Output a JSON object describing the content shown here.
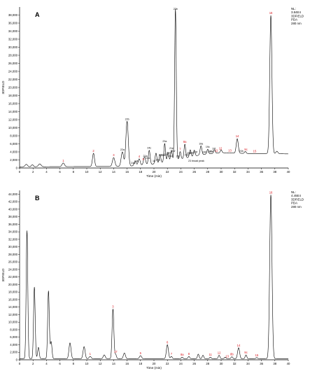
{
  "chart_data": [
    {
      "type": "line",
      "panel": "A",
      "info_lines": [
        "NL:",
        "3.84E4",
        "3DFIELD",
        "PDA",
        "280 nm"
      ],
      "xlabel": "Time (min)",
      "ylabel": "3DFIELD",
      "xlim": [
        0,
        40
      ],
      "ylim": [
        0,
        40000
      ],
      "x_ticks": [
        0,
        2,
        4,
        6,
        8,
        10,
        12,
        14,
        16,
        18,
        20,
        22,
        24,
        26,
        28,
        30,
        32,
        34,
        36,
        38,
        40
      ],
      "y_ticks": [
        0,
        2000,
        4000,
        6000,
        8000,
        10000,
        12000,
        14000,
        16000,
        18000,
        20000,
        22000,
        24000,
        26000,
        28000,
        30000,
        32000,
        34000,
        36000,
        38000
      ],
      "x_tick_labels": [
        "0",
        "2",
        "4",
        "6",
        "8",
        "10",
        "12",
        "14",
        "16",
        "18",
        "20",
        "22",
        "24",
        "26",
        "28",
        "30",
        "32",
        "34",
        "36",
        "38",
        "40"
      ],
      "y_tick_labels": [
        "0",
        "2,000",
        "4,000",
        "6,000",
        "8,000",
        "10,000",
        "12,000",
        "14,000",
        "16,000",
        "18,000",
        "20,000",
        "22,000",
        "24,000",
        "26,000",
        "28,000",
        "30,000",
        "32,000",
        "34,000",
        "36,000",
        "38,000"
      ],
      "baseline": [
        [
          0,
          300
        ],
        [
          16,
          400
        ],
        [
          20,
          1000
        ],
        [
          24,
          2200
        ],
        [
          27,
          3300
        ],
        [
          30,
          3800
        ],
        [
          34,
          3600
        ],
        [
          37,
          3600
        ],
        [
          40,
          3500
        ]
      ],
      "peaks": [
        {
          "rt": 1.0,
          "h": 600,
          "w": 0.18
        },
        {
          "rt": 1.9,
          "h": 500,
          "w": 0.15
        },
        {
          "rt": 3.0,
          "h": 700,
          "w": 0.2
        },
        {
          "rt": 6.5,
          "h": 900,
          "w": 0.18
        },
        {
          "rt": 11.0,
          "h": 3300,
          "w": 0.15
        },
        {
          "rt": 14.0,
          "h": 2200,
          "w": 0.18
        },
        {
          "rt": 15.3,
          "h": 3600,
          "w": 0.18
        },
        {
          "rt": 16.0,
          "h": 11200,
          "w": 0.18
        },
        {
          "rt": 17.2,
          "h": 1100,
          "w": 0.15
        },
        {
          "rt": 17.8,
          "h": 1600,
          "w": 0.15
        },
        {
          "rt": 18.6,
          "h": 2000,
          "w": 0.15
        },
        {
          "rt": 19.3,
          "h": 3500,
          "w": 0.13
        },
        {
          "rt": 20.3,
          "h": 2600,
          "w": 0.13
        },
        {
          "rt": 20.9,
          "h": 2000,
          "w": 0.12
        },
        {
          "rt": 21.6,
          "h": 4600,
          "w": 0.12
        },
        {
          "rt": 22.1,
          "h": 2200,
          "w": 0.12
        },
        {
          "rt": 22.6,
          "h": 2600,
          "w": 0.12
        },
        {
          "rt": 23.2,
          "h": 37500,
          "w": 0.12
        },
        {
          "rt": 23.9,
          "h": 1900,
          "w": 0.12
        },
        {
          "rt": 24.6,
          "h": 3500,
          "w": 0.12
        },
        {
          "rt": 25.4,
          "h": 1800,
          "w": 0.12
        },
        {
          "rt": 26.0,
          "h": 1500,
          "w": 0.12
        },
        {
          "rt": 27.0,
          "h": 2200,
          "w": 0.13
        },
        {
          "rt": 28.0,
          "h": 1200,
          "w": 0.12
        },
        {
          "rt": 29.0,
          "h": 900,
          "w": 0.12
        },
        {
          "rt": 30.0,
          "h": 700,
          "w": 0.12
        },
        {
          "rt": 32.4,
          "h": 3600,
          "w": 0.15
        },
        {
          "rt": 33.6,
          "h": 500,
          "w": 0.12
        },
        {
          "rt": 37.4,
          "h": 34300,
          "w": 0.16
        },
        {
          "rt": 38.3,
          "h": 600,
          "w": 0.15
        }
      ],
      "peak_labels": [
        {
          "text": "1",
          "rt": 6.5,
          "color": "red"
        },
        {
          "text": "2",
          "rt": 11.0,
          "color": "red"
        },
        {
          "text": "3",
          "rt": 14.0,
          "color": "red"
        },
        {
          "text": "22a",
          "rt": 15.3,
          "color": "black"
        },
        {
          "text": "22b",
          "rt": 16.0,
          "color": "black"
        },
        {
          "text": "24a",
          "rt": 16.9,
          "color": "black"
        },
        {
          "text": "24b",
          "rt": 17.4,
          "color": "black"
        },
        {
          "text": "4",
          "rt": 17.8,
          "color": "red"
        },
        {
          "text": "5",
          "rt": 18.4,
          "color": "red"
        },
        {
          "text": "21a",
          "rt": 18.7,
          "color": "black"
        },
        {
          "text": "24c",
          "rt": 19.1,
          "color": "black"
        },
        {
          "text": "24c",
          "rt": 19.3,
          "color": "black"
        },
        {
          "text": "18",
          "rt": 20.0,
          "color": "black"
        },
        {
          "text": "20a",
          "rt": 20.6,
          "color": "black"
        },
        {
          "text": "20b",
          "rt": 21.0,
          "color": "black"
        },
        {
          "text": "21b",
          "rt": 21.4,
          "color": "black"
        },
        {
          "text": "21c",
          "rt": 21.8,
          "color": "black"
        },
        {
          "text": "23a",
          "rt": 21.6,
          "color": "black"
        },
        {
          "text": "21d",
          "rt": 22.2,
          "color": "black"
        },
        {
          "text": "21e",
          "rt": 22.6,
          "color": "black"
        },
        {
          "text": "21f",
          "rt": 22.9,
          "color": "black"
        },
        {
          "text": "23b",
          "rt": 23.2,
          "color": "black"
        },
        {
          "text": "23c",
          "rt": 22.4,
          "color": "black"
        },
        {
          "text": "20c",
          "rt": 23.6,
          "color": "black"
        },
        {
          "text": "7",
          "rt": 23.9,
          "color": "red"
        },
        {
          "text": "8a",
          "rt": 24.6,
          "color": "red"
        },
        {
          "text": "23d",
          "rt": 24.9,
          "color": "black"
        },
        {
          "text": "20d",
          "rt": 25.2,
          "color": "black"
        },
        {
          "text": "23e",
          "rt": 25.6,
          "color": "black"
        },
        {
          "text": "23f",
          "rt": 26.2,
          "color": "black"
        },
        {
          "text": "19a",
          "rt": 27.0,
          "color": "black"
        },
        {
          "text": "19b",
          "rt": 27.5,
          "color": "black"
        },
        {
          "text": "19c",
          "rt": 28.0,
          "color": "black"
        },
        {
          "text": "19d",
          "rt": 28.3,
          "color": "black"
        },
        {
          "text": "19e",
          "rt": 28.6,
          "color": "black"
        },
        {
          "text": "19f",
          "rt": 28.9,
          "color": "black"
        },
        {
          "text": "11",
          "rt": 29.3,
          "color": "red"
        },
        {
          "text": "12",
          "rt": 29.9,
          "color": "red"
        },
        {
          "text": "13",
          "rt": 31.3,
          "color": "red"
        },
        {
          "text": "14",
          "rt": 32.4,
          "color": "red"
        },
        {
          "text": "23h",
          "rt": 33.0,
          "color": "black"
        },
        {
          "text": "9c",
          "rt": 33.7,
          "color": "red"
        },
        {
          "text": "15",
          "rt": 35.0,
          "color": "red"
        },
        {
          "text": "16",
          "rt": 37.4,
          "color": "red"
        }
      ],
      "annotation": "23 broad peak"
    },
    {
      "type": "line",
      "panel": "B",
      "info_lines": [
        "NL:",
        "4.45E4",
        "3DFIELD",
        "PDA",
        "280 nm"
      ],
      "xlabel": "Time (min)",
      "ylabel": "3DFIELD",
      "xlim": [
        0,
        40
      ],
      "ylim": [
        0,
        45000
      ],
      "x_ticks": [
        0,
        2,
        4,
        6,
        8,
        10,
        12,
        14,
        16,
        18,
        20,
        22,
        24,
        26,
        28,
        30,
        32,
        34,
        36,
        38,
        40
      ],
      "y_ticks": [
        0,
        2000,
        4000,
        6000,
        8000,
        10000,
        12000,
        14000,
        16000,
        18000,
        20000,
        22000,
        24000,
        26000,
        28000,
        30000,
        32000,
        34000,
        36000,
        38000,
        40000,
        42000,
        44000
      ],
      "x_tick_labels": [
        "0",
        "2",
        "4",
        "6",
        "8",
        "10",
        "12",
        "14",
        "16",
        "18",
        "20",
        "22",
        "24",
        "26",
        "28",
        "30",
        "32",
        "34",
        "36",
        "38",
        "40"
      ],
      "y_tick_labels": [
        "0",
        "2,000",
        "4,000",
        "6,000",
        "8,000",
        "10,000",
        "12,000",
        "14,000",
        "16,000",
        "18,000",
        "20,000",
        "22,000",
        "24,000",
        "26,000",
        "28,000",
        "30,000",
        "32,000",
        "34,000",
        "36,000",
        "38,000",
        "40,000",
        "42,000",
        "44,000"
      ],
      "baseline": [
        [
          0,
          300
        ],
        [
          40,
          300
        ]
      ],
      "peaks": [
        {
          "rt": 1.1,
          "h": 34000,
          "w": 0.12
        },
        {
          "rt": 2.2,
          "h": 19000,
          "w": 0.12
        },
        {
          "rt": 2.8,
          "h": 3000,
          "w": 0.12
        },
        {
          "rt": 4.3,
          "h": 18000,
          "w": 0.12
        },
        {
          "rt": 4.7,
          "h": 4500,
          "w": 0.12
        },
        {
          "rt": 7.5,
          "h": 4200,
          "w": 0.15
        },
        {
          "rt": 9.6,
          "h": 3200,
          "w": 0.15
        },
        {
          "rt": 10.5,
          "h": 600,
          "w": 0.15
        },
        {
          "rt": 12.6,
          "h": 1000,
          "w": 0.15
        },
        {
          "rt": 13.9,
          "h": 13200,
          "w": 0.13
        },
        {
          "rt": 14.3,
          "h": 1100,
          "w": 0.12
        },
        {
          "rt": 15.6,
          "h": 1500,
          "w": 0.15
        },
        {
          "rt": 18.0,
          "h": 800,
          "w": 0.15
        },
        {
          "rt": 22.0,
          "h": 3700,
          "w": 0.15
        },
        {
          "rt": 22.6,
          "h": 600,
          "w": 0.12
        },
        {
          "rt": 24.2,
          "h": 400,
          "w": 0.12
        },
        {
          "rt": 25.2,
          "h": 600,
          "w": 0.12
        },
        {
          "rt": 26.6,
          "h": 1200,
          "w": 0.12
        },
        {
          "rt": 27.3,
          "h": 900,
          "w": 0.12
        },
        {
          "rt": 28.4,
          "h": 400,
          "w": 0.12
        },
        {
          "rt": 29.7,
          "h": 900,
          "w": 0.12
        },
        {
          "rt": 30.6,
          "h": 400,
          "w": 0.12
        },
        {
          "rt": 31.6,
          "h": 500,
          "w": 0.12
        },
        {
          "rt": 32.6,
          "h": 2900,
          "w": 0.15
        },
        {
          "rt": 33.7,
          "h": 1000,
          "w": 0.12
        },
        {
          "rt": 35.3,
          "h": 300,
          "w": 0.12
        },
        {
          "rt": 37.4,
          "h": 43500,
          "w": 0.17
        }
      ],
      "peak_labels": [
        {
          "text": "1",
          "rt": 10.5,
          "color": "red"
        },
        {
          "text": "3",
          "rt": 13.9,
          "color": "red"
        },
        {
          "text": "17",
          "rt": 14.3,
          "color": "red"
        },
        {
          "text": "5",
          "rt": 18.0,
          "color": "red"
        },
        {
          "text": "6",
          "rt": 22.0,
          "color": "red"
        },
        {
          "text": "7",
          "rt": 22.6,
          "color": "red"
        },
        {
          "text": "8a",
          "rt": 24.2,
          "color": "red"
        },
        {
          "text": "8",
          "rt": 25.2,
          "color": "red"
        },
        {
          "text": "11",
          "rt": 28.4,
          "color": "red"
        },
        {
          "text": "12",
          "rt": 29.7,
          "color": "red"
        },
        {
          "text": "13",
          "rt": 30.9,
          "color": "red"
        },
        {
          "text": "8b",
          "rt": 31.6,
          "color": "red"
        },
        {
          "text": "14",
          "rt": 32.6,
          "color": "red"
        },
        {
          "text": "9c",
          "rt": 33.7,
          "color": "red"
        },
        {
          "text": "15",
          "rt": 35.3,
          "color": "red"
        },
        {
          "text": "16",
          "rt": 37.4,
          "color": "red"
        }
      ]
    }
  ]
}
